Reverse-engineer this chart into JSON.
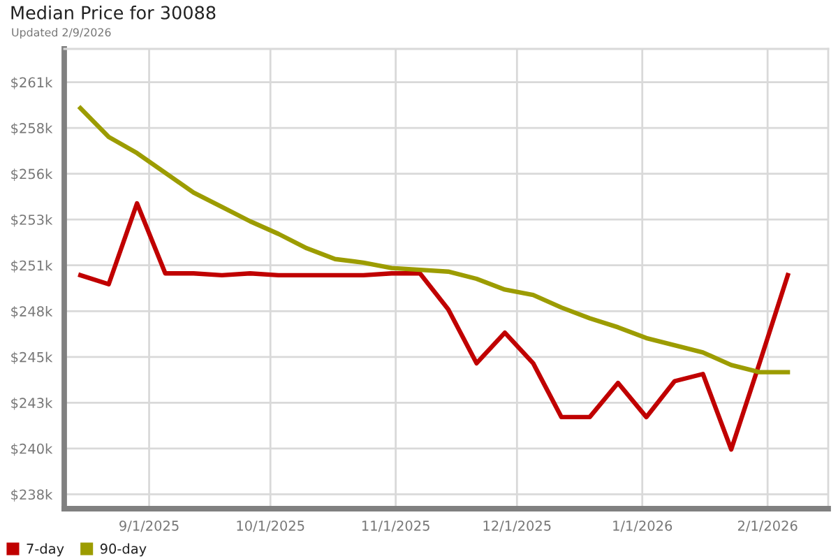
{
  "chart_data": {
    "type": "line",
    "title": "Median Price for 30088",
    "subtitle": "Updated 2/9/2026",
    "x": [
      "2025-08-15",
      "2025-08-22",
      "2025-08-29",
      "2025-09-05",
      "2025-09-12",
      "2025-09-19",
      "2025-09-26",
      "2025-10-03",
      "2025-10-10",
      "2025-10-17",
      "2025-10-24",
      "2025-10-31",
      "2025-11-07",
      "2025-11-14",
      "2025-11-21",
      "2025-11-28",
      "2025-12-05",
      "2025-12-12",
      "2025-12-19",
      "2025-12-26",
      "2026-01-02",
      "2026-01-09",
      "2026-01-16",
      "2026-01-23",
      "2026-01-30",
      "2026-02-06"
    ],
    "series": [
      {
        "name": "7-day",
        "color": "#c00000",
        "values": [
          250000,
          249500,
          254000,
          250100,
          250100,
          250000,
          250100,
          250000,
          250000,
          250000,
          250000,
          250100,
          250100,
          248100,
          245100,
          246800,
          245100,
          242100,
          242100,
          244000,
          242100,
          244100,
          244500,
          240300,
          245100,
          250000
        ]
      },
      {
        "name": "90-day",
        "color": "#9c9c00",
        "values": [
          259300,
          257700,
          256800,
          255700,
          254600,
          253800,
          253000,
          252300,
          251500,
          250900,
          250700,
          250400,
          250300,
          250200,
          249800,
          249200,
          248900,
          248200,
          247600,
          247100,
          246500,
          246100,
          245700,
          245000,
          244600,
          244600
        ]
      }
    ],
    "xlim": [
      "2025-08-11",
      "2026-02-16"
    ],
    "xticks": [
      {
        "value": "2025-09-01",
        "label": "9/1/2025"
      },
      {
        "value": "2025-10-01",
        "label": "10/1/2025"
      },
      {
        "value": "2025-11-01",
        "label": "11/1/2025"
      },
      {
        "value": "2025-12-01",
        "label": "12/1/2025"
      },
      {
        "value": "2026-01-01",
        "label": "1/1/2026"
      },
      {
        "value": "2026-02-01",
        "label": "2/1/2026"
      }
    ],
    "ylim": [
      237000,
      262600
    ],
    "yticks": [
      {
        "value": 237800,
        "label": "$238k"
      },
      {
        "value": 240350,
        "label": "$240k"
      },
      {
        "value": 242900,
        "label": "$243k"
      },
      {
        "value": 245450,
        "label": "$245k"
      },
      {
        "value": 248000,
        "label": "$248k"
      },
      {
        "value": 250550,
        "label": "$251k"
      },
      {
        "value": 253100,
        "label": "$253k"
      },
      {
        "value": 255650,
        "label": "$256k"
      },
      {
        "value": 258200,
        "label": "$258k"
      },
      {
        "value": 260750,
        "label": "$261k"
      }
    ],
    "grid": true,
    "legend": "bottom",
    "line_style": "solid"
  }
}
